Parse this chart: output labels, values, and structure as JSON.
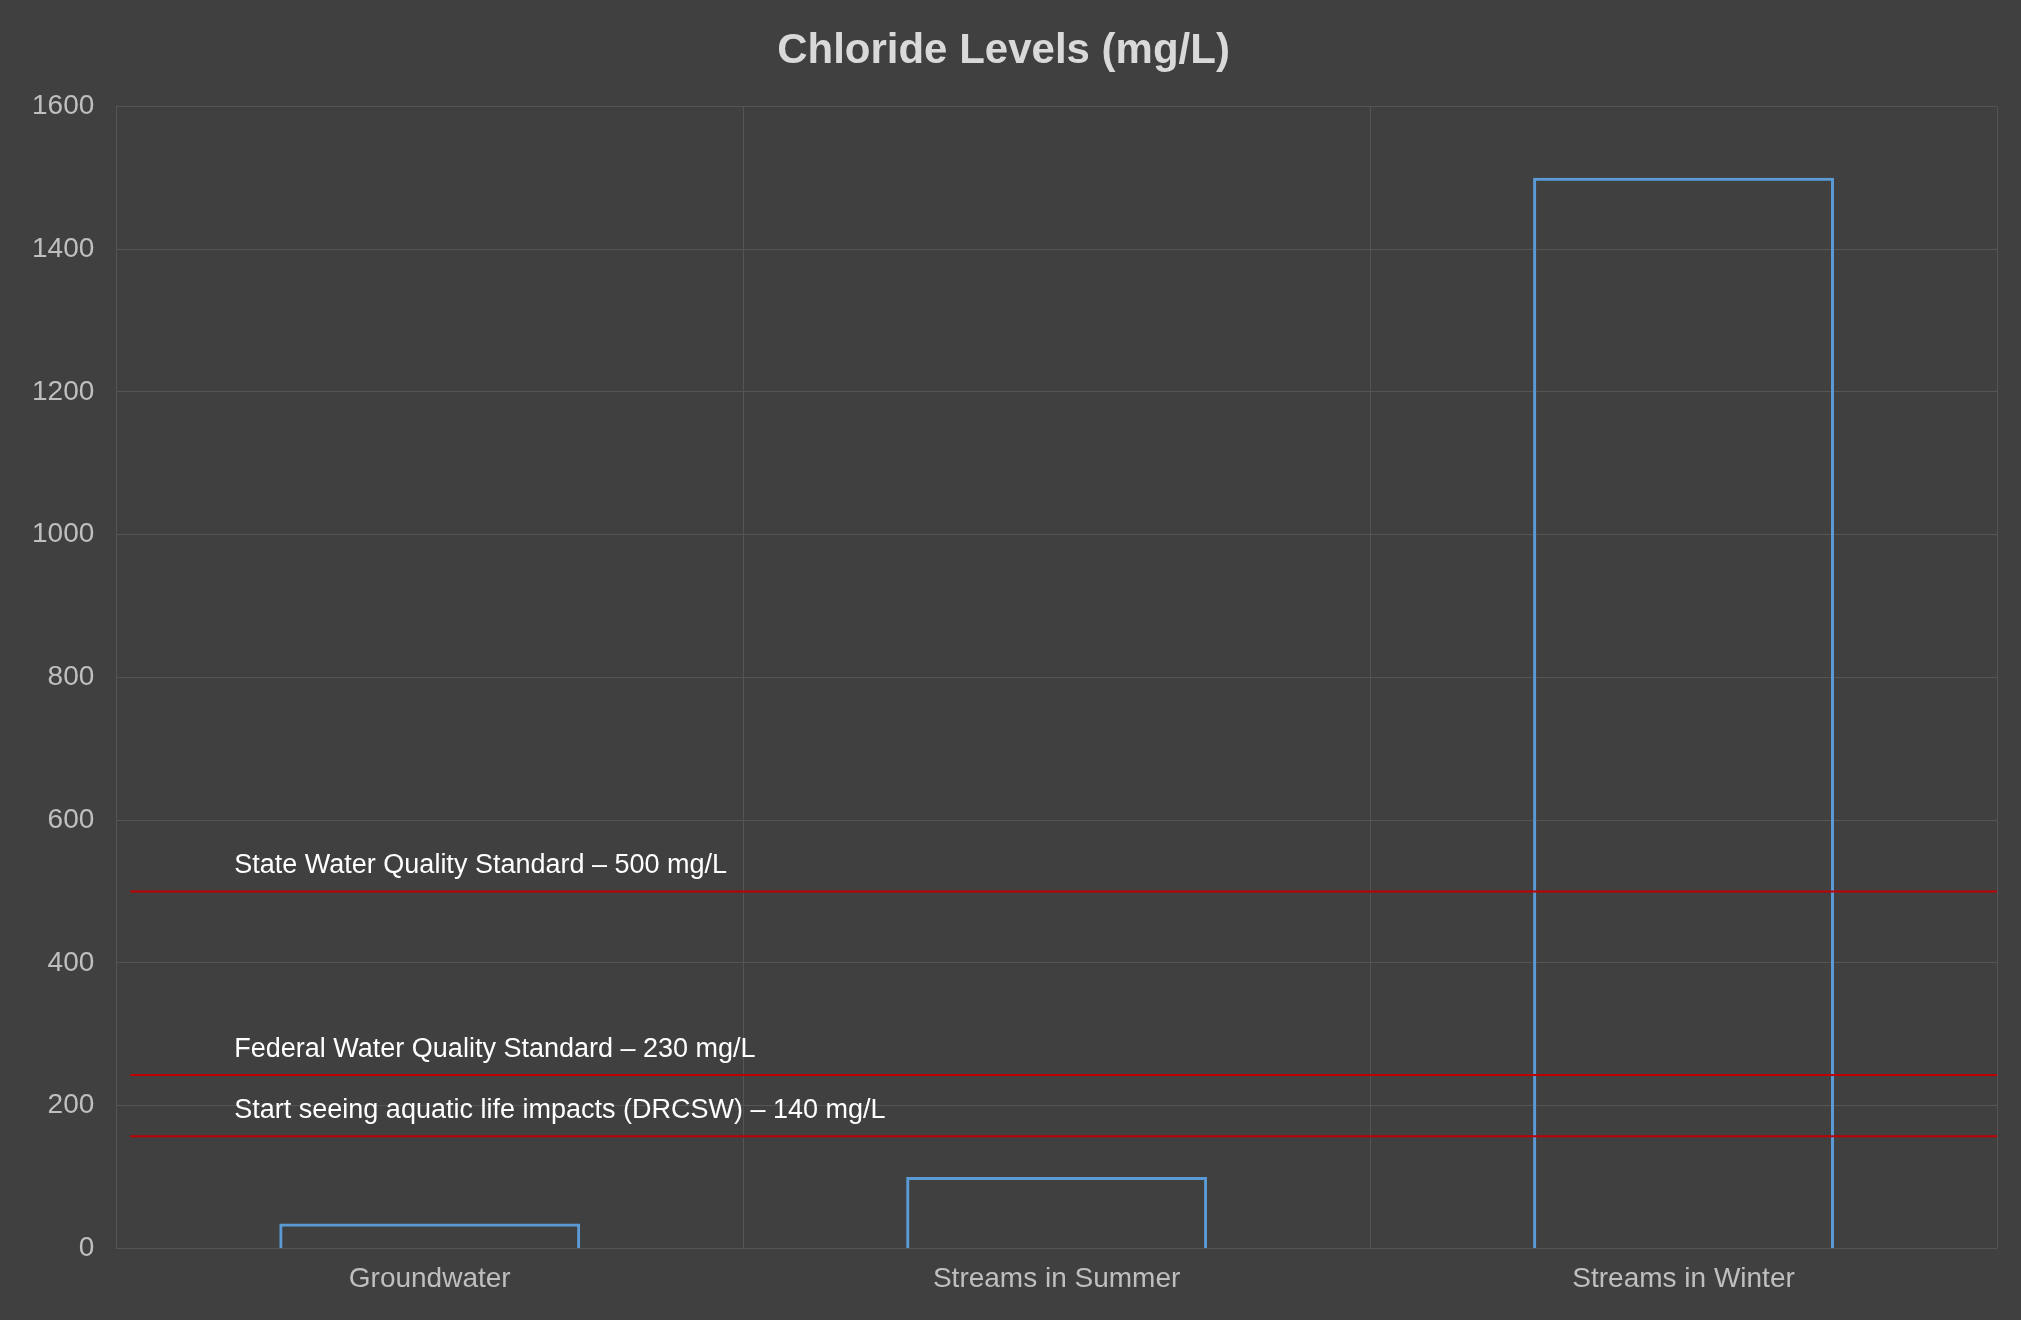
{
  "chart_data": {
    "type": "bar",
    "title": "Chloride Levels (mg/L)",
    "categories": [
      "Groundwater",
      "Streams in Summer",
      "Streams in Winter"
    ],
    "values": [
      35,
      100,
      1500
    ],
    "color": "#5b9bd5",
    "ylim": [
      0,
      1600
    ],
    "yticks": [
      0,
      200,
      400,
      600,
      800,
      1000,
      1200,
      1400,
      1600
    ],
    "grid": true,
    "legend": false,
    "ref_lines": [
      {
        "axis": "y",
        "value": 500,
        "label": "State Water Quality Standard – 500 mg/L",
        "color": "#c00000"
      },
      {
        "axis": "y",
        "value": 243,
        "label": "Federal Water Quality Standard – 230 mg/L",
        "color": "#c00000"
      },
      {
        "axis": "y",
        "value": 157,
        "label": "Start seeing aquatic life impacts (DRCSW) – 140 mg/L",
        "color": "#c00000"
      }
    ]
  }
}
